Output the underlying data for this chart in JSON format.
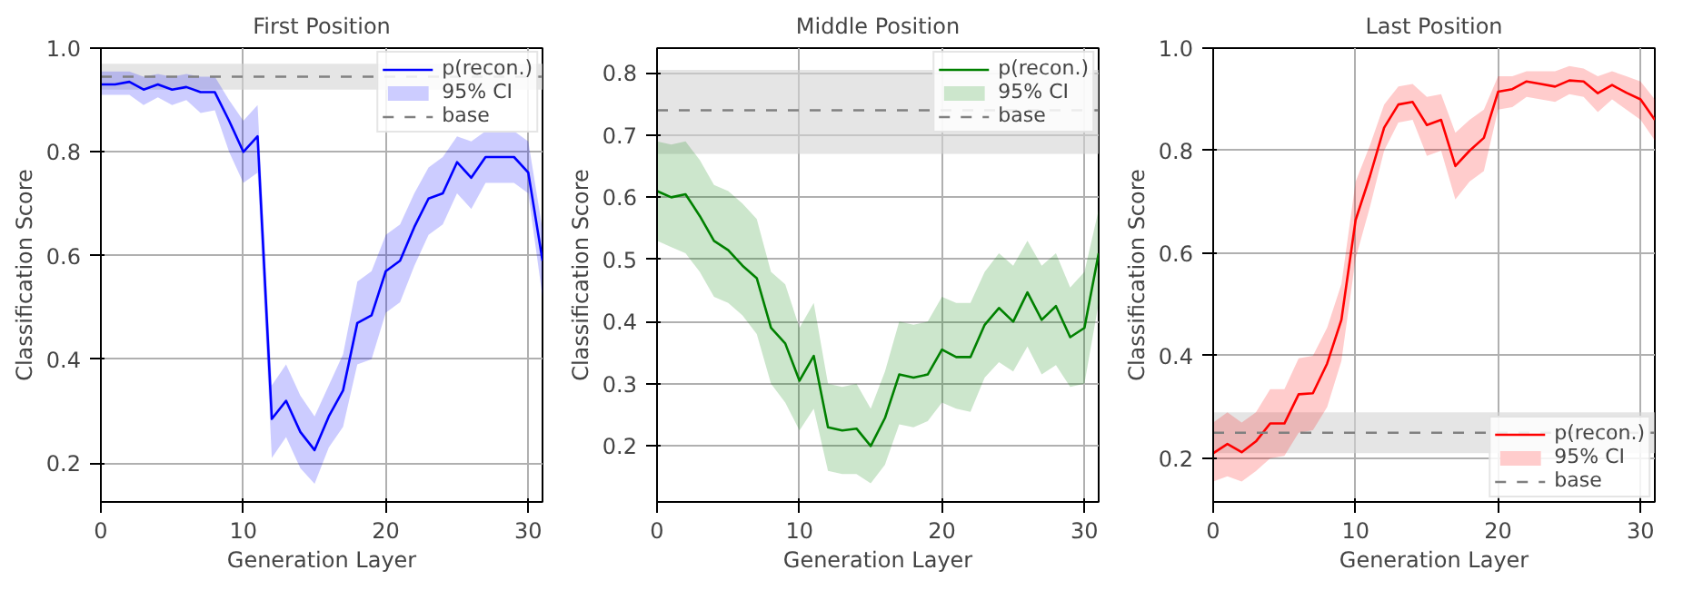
{
  "chart_data": [
    {
      "type": "line",
      "title": "First Position",
      "xlabel": "Generation Layer",
      "ylabel": "Classification Score",
      "xlim": [
        0,
        31
      ],
      "ylim": [
        0.125,
        1.0
      ],
      "xticks": [
        0,
        10,
        20,
        30
      ],
      "yticks": [
        0.2,
        0.4,
        0.6,
        0.8,
        {
          "value": 1.0,
          "label": "1.0"
        }
      ],
      "grid": true,
      "legend": "top right",
      "x": [
        0,
        1,
        2,
        3,
        4,
        5,
        6,
        7,
        8,
        9,
        10,
        11,
        12,
        13,
        14,
        15,
        16,
        17,
        18,
        19,
        20,
        21,
        22,
        23,
        24,
        25,
        26,
        27,
        28,
        29,
        30,
        31
      ],
      "series": [
        {
          "name": "p(recon.)",
          "color": "#0000ff",
          "values": [
            0.93,
            0.93,
            0.935,
            0.92,
            0.93,
            0.92,
            0.925,
            0.915,
            0.915,
            0.86,
            0.8,
            0.83,
            0.285,
            0.32,
            0.26,
            0.225,
            0.29,
            0.34,
            0.47,
            0.485,
            0.57,
            0.59,
            0.655,
            0.71,
            0.72,
            0.78,
            0.75,
            0.79,
            0.79,
            0.79,
            0.76,
            0.59
          ],
          "lower": [
            0.91,
            0.91,
            0.91,
            0.89,
            0.905,
            0.89,
            0.9,
            0.875,
            0.88,
            0.8,
            0.74,
            0.76,
            0.21,
            0.25,
            0.19,
            0.16,
            0.23,
            0.27,
            0.39,
            0.4,
            0.49,
            0.51,
            0.58,
            0.64,
            0.66,
            0.72,
            0.69,
            0.74,
            0.74,
            0.74,
            0.72,
            0.52
          ],
          "upper": [
            0.955,
            0.955,
            0.955,
            0.945,
            0.95,
            0.945,
            0.95,
            0.945,
            0.945,
            0.9,
            0.86,
            0.89,
            0.35,
            0.39,
            0.33,
            0.29,
            0.35,
            0.41,
            0.55,
            0.57,
            0.64,
            0.66,
            0.72,
            0.77,
            0.79,
            0.83,
            0.82,
            0.84,
            0.84,
            0.84,
            0.82,
            0.65
          ]
        },
        {
          "name": "95% CI",
          "type": "area",
          "color": "#ccccff",
          "values": [
            null,
            null,
            null,
            null,
            null,
            null,
            null,
            null,
            null,
            null,
            null,
            null,
            null,
            null,
            null,
            null,
            null,
            null,
            null,
            null,
            null,
            null,
            null,
            null,
            null,
            null,
            null,
            null,
            null,
            null,
            null,
            null
          ]
        }
      ],
      "ref_lines": [
        {
          "axis": "y",
          "value": 0.945,
          "label": "base",
          "color": "#808080",
          "line_style": "dashed"
        }
      ],
      "bands": [
        {
          "axis": "y",
          "from": 0.92,
          "to": 0.97,
          "color": "#d3d3d3"
        }
      ]
    },
    {
      "type": "line",
      "title": "Middle Position",
      "xlabel": "Generation Layer",
      "ylabel": "Classification Score",
      "xlim": [
        0,
        31
      ],
      "ylim": [
        0.11,
        0.84
      ],
      "xticks": [
        0,
        10,
        20,
        30
      ],
      "yticks": [
        0.2,
        0.3,
        0.4,
        0.5,
        0.6,
        0.7,
        0.8
      ],
      "grid": true,
      "legend": "top right",
      "x": [
        0,
        1,
        2,
        3,
        4,
        5,
        6,
        7,
        8,
        9,
        10,
        11,
        12,
        13,
        14,
        15,
        16,
        17,
        18,
        19,
        20,
        21,
        22,
        23,
        24,
        25,
        26,
        27,
        28,
        29,
        30,
        31
      ],
      "series": [
        {
          "name": "p(recon.)",
          "color": "#008000",
          "values": [
            0.61,
            0.6,
            0.605,
            0.57,
            0.53,
            0.515,
            0.49,
            0.47,
            0.39,
            0.365,
            0.305,
            0.345,
            0.23,
            0.225,
            0.228,
            0.2,
            0.245,
            0.315,
            0.31,
            0.315,
            0.355,
            0.343,
            0.343,
            0.395,
            0.422,
            0.4,
            0.447,
            0.403,
            0.425,
            0.375,
            0.39,
            0.51
          ],
          "lower": [
            0.53,
            0.52,
            0.51,
            0.48,
            0.44,
            0.43,
            0.41,
            0.38,
            0.3,
            0.27,
            0.225,
            0.26,
            0.16,
            0.155,
            0.155,
            0.14,
            0.17,
            0.235,
            0.23,
            0.24,
            0.27,
            0.26,
            0.255,
            0.31,
            0.335,
            0.32,
            0.36,
            0.315,
            0.33,
            0.295,
            0.3,
            0.43
          ],
          "upper": [
            0.69,
            0.685,
            0.69,
            0.66,
            0.62,
            0.61,
            0.59,
            0.565,
            0.48,
            0.46,
            0.39,
            0.43,
            0.3,
            0.295,
            0.3,
            0.26,
            0.32,
            0.4,
            0.395,
            0.4,
            0.44,
            0.43,
            0.43,
            0.48,
            0.51,
            0.49,
            0.53,
            0.49,
            0.51,
            0.455,
            0.48,
            0.58
          ]
        },
        {
          "name": "95% CI",
          "type": "area",
          "color": "#cce6cc",
          "values": [
            null,
            null,
            null,
            null,
            null,
            null,
            null,
            null,
            null,
            null,
            null,
            null,
            null,
            null,
            null,
            null,
            null,
            null,
            null,
            null,
            null,
            null,
            null,
            null,
            null,
            null,
            null,
            null,
            null,
            null,
            null,
            null
          ]
        }
      ],
      "ref_lines": [
        {
          "axis": "y",
          "value": 0.74,
          "label": "base",
          "color": "#808080",
          "line_style": "dashed"
        }
      ],
      "bands": [
        {
          "axis": "y",
          "from": 0.67,
          "to": 0.805,
          "color": "#d3d3d3"
        }
      ]
    },
    {
      "type": "line",
      "title": "Last Position",
      "xlabel": "Generation Layer",
      "ylabel": "Classification Score",
      "xlim": [
        0,
        31
      ],
      "ylim": [
        0.115,
        1.0
      ],
      "xticks": [
        0,
        10,
        20,
        30
      ],
      "yticks": [
        0.2,
        0.4,
        0.6,
        0.8,
        {
          "value": 1.0,
          "label": "1.0"
        }
      ],
      "grid": true,
      "legend": "bottom right",
      "x": [
        0,
        1,
        2,
        3,
        4,
        5,
        6,
        7,
        8,
        9,
        10,
        11,
        12,
        13,
        14,
        15,
        16,
        17,
        18,
        19,
        20,
        21,
        22,
        23,
        24,
        25,
        26,
        27,
        28,
        29,
        30,
        31
      ],
      "series": [
        {
          "name": "p(recon.)",
          "color": "#ff0000",
          "values": [
            0.21,
            0.228,
            0.212,
            0.233,
            0.268,
            0.268,
            0.325,
            0.327,
            0.385,
            0.47,
            0.665,
            0.75,
            0.845,
            0.89,
            0.895,
            0.85,
            0.86,
            0.77,
            0.8,
            0.825,
            0.915,
            0.92,
            0.935,
            0.93,
            0.925,
            0.937,
            0.935,
            0.912,
            0.928,
            0.913,
            0.9,
            0.86
          ],
          "lower": [
            0.155,
            0.165,
            0.155,
            0.175,
            0.2,
            0.205,
            0.25,
            0.255,
            0.3,
            0.39,
            0.59,
            0.69,
            0.8,
            0.855,
            0.86,
            0.79,
            0.8,
            0.705,
            0.74,
            0.76,
            0.88,
            0.885,
            0.905,
            0.9,
            0.895,
            0.91,
            0.905,
            0.875,
            0.9,
            0.88,
            0.86,
            0.82
          ],
          "upper": [
            0.27,
            0.29,
            0.27,
            0.29,
            0.335,
            0.335,
            0.395,
            0.4,
            0.455,
            0.54,
            0.74,
            0.81,
            0.89,
            0.925,
            0.93,
            0.905,
            0.91,
            0.835,
            0.86,
            0.88,
            0.945,
            0.945,
            0.955,
            0.955,
            0.955,
            0.965,
            0.96,
            0.945,
            0.955,
            0.945,
            0.935,
            0.9
          ]
        },
        {
          "name": "95% CI",
          "type": "area",
          "color": "#ffcccc",
          "values": [
            null,
            null,
            null,
            null,
            null,
            null,
            null,
            null,
            null,
            null,
            null,
            null,
            null,
            null,
            null,
            null,
            null,
            null,
            null,
            null,
            null,
            null,
            null,
            null,
            null,
            null,
            null,
            null,
            null,
            null,
            null,
            null
          ]
        }
      ],
      "ref_lines": [
        {
          "axis": "y",
          "value": 0.25,
          "label": "base",
          "color": "#808080",
          "line_style": "dashed"
        }
      ],
      "bands": [
        {
          "axis": "y",
          "from": 0.21,
          "to": 0.29,
          "color": "#d3d3d3"
        }
      ]
    }
  ]
}
